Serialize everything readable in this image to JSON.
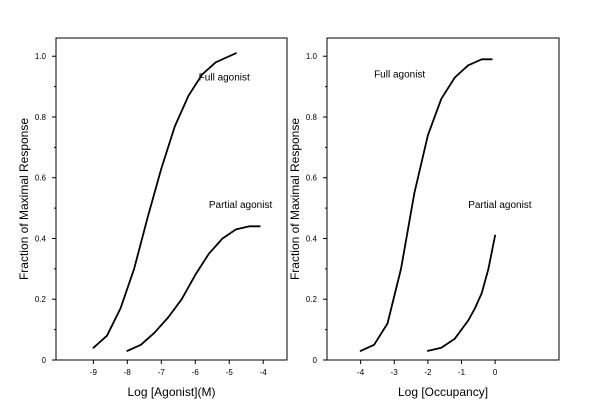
{
  "chart_data": [
    {
      "type": "line",
      "xlabel": "Log [Agonist](M)",
      "ylabel": "Fraction of Maximal Response",
      "xlim": [
        -10.1,
        -3.3
      ],
      "ylim": [
        0,
        1.06
      ],
      "x_ticks": [
        -9,
        -8,
        -7,
        -6,
        -5,
        -4
      ],
      "y_ticks": [
        0,
        0.2,
        0.4,
        0.6,
        0.8,
        1.0
      ],
      "x_tick_labels": [
        "-9",
        "-8",
        "-7",
        "-6",
        "-5",
        "-4"
      ],
      "y_tick_labels": [
        "0",
        "0.2",
        "0.4",
        "0.6",
        "0.8",
        "1.0"
      ],
      "grid": false,
      "annotations": [
        {
          "text": "Full agonist",
          "x": -5.9,
          "y": 0.92
        },
        {
          "text": "Partial agonist",
          "x": -5.6,
          "y": 0.5
        }
      ],
      "series": [
        {
          "x": [
            -9.0,
            -8.6,
            -8.2,
            -7.8,
            -7.4,
            -7.0,
            -6.6,
            -6.2,
            -5.8,
            -5.4,
            -5.0,
            -4.8
          ],
          "y": [
            0.04,
            0.08,
            0.17,
            0.3,
            0.47,
            0.63,
            0.77,
            0.87,
            0.94,
            0.98,
            1.0,
            1.01
          ]
        },
        {
          "x": [
            -8.0,
            -7.6,
            -7.2,
            -6.8,
            -6.4,
            -6.0,
            -5.6,
            -5.2,
            -4.8,
            -4.4,
            -4.1
          ],
          "y": [
            0.03,
            0.05,
            0.09,
            0.14,
            0.2,
            0.28,
            0.35,
            0.4,
            0.43,
            0.44,
            0.44
          ]
        }
      ]
    },
    {
      "type": "line",
      "xlabel": "Log [Occupancy]",
      "ylabel": "Fraction of Maximal Response",
      "xlim": [
        -5.0,
        1.9
      ],
      "ylim": [
        0,
        1.06
      ],
      "x_ticks": [
        -4,
        -3,
        -2,
        -1,
        0
      ],
      "y_ticks": [
        0,
        0.2,
        0.4,
        0.6,
        0.8,
        1.0
      ],
      "x_tick_labels": [
        "-4",
        "-3",
        "-2",
        "-1",
        "0"
      ],
      "y_tick_labels": [
        "0",
        "0.2",
        "0.4",
        "0.6",
        "0.8",
        "1.0"
      ],
      "grid": false,
      "annotations": [
        {
          "text": "Full agonist",
          "x": -3.6,
          "y": 0.93
        },
        {
          "text": "Partial agonist",
          "x": -0.8,
          "y": 0.5
        }
      ],
      "series": [
        {
          "x": [
            -4.0,
            -3.6,
            -3.2,
            -2.8,
            -2.4,
            -2.0,
            -1.6,
            -1.2,
            -0.8,
            -0.4,
            -0.1
          ],
          "y": [
            0.03,
            0.05,
            0.12,
            0.3,
            0.55,
            0.74,
            0.86,
            0.93,
            0.97,
            0.99,
            0.99
          ]
        },
        {
          "x": [
            -2.0,
            -1.6,
            -1.2,
            -0.8,
            -0.6,
            -0.4,
            -0.2,
            0.0
          ],
          "y": [
            0.03,
            0.04,
            0.07,
            0.13,
            0.17,
            0.22,
            0.3,
            0.41
          ]
        }
      ]
    }
  ]
}
